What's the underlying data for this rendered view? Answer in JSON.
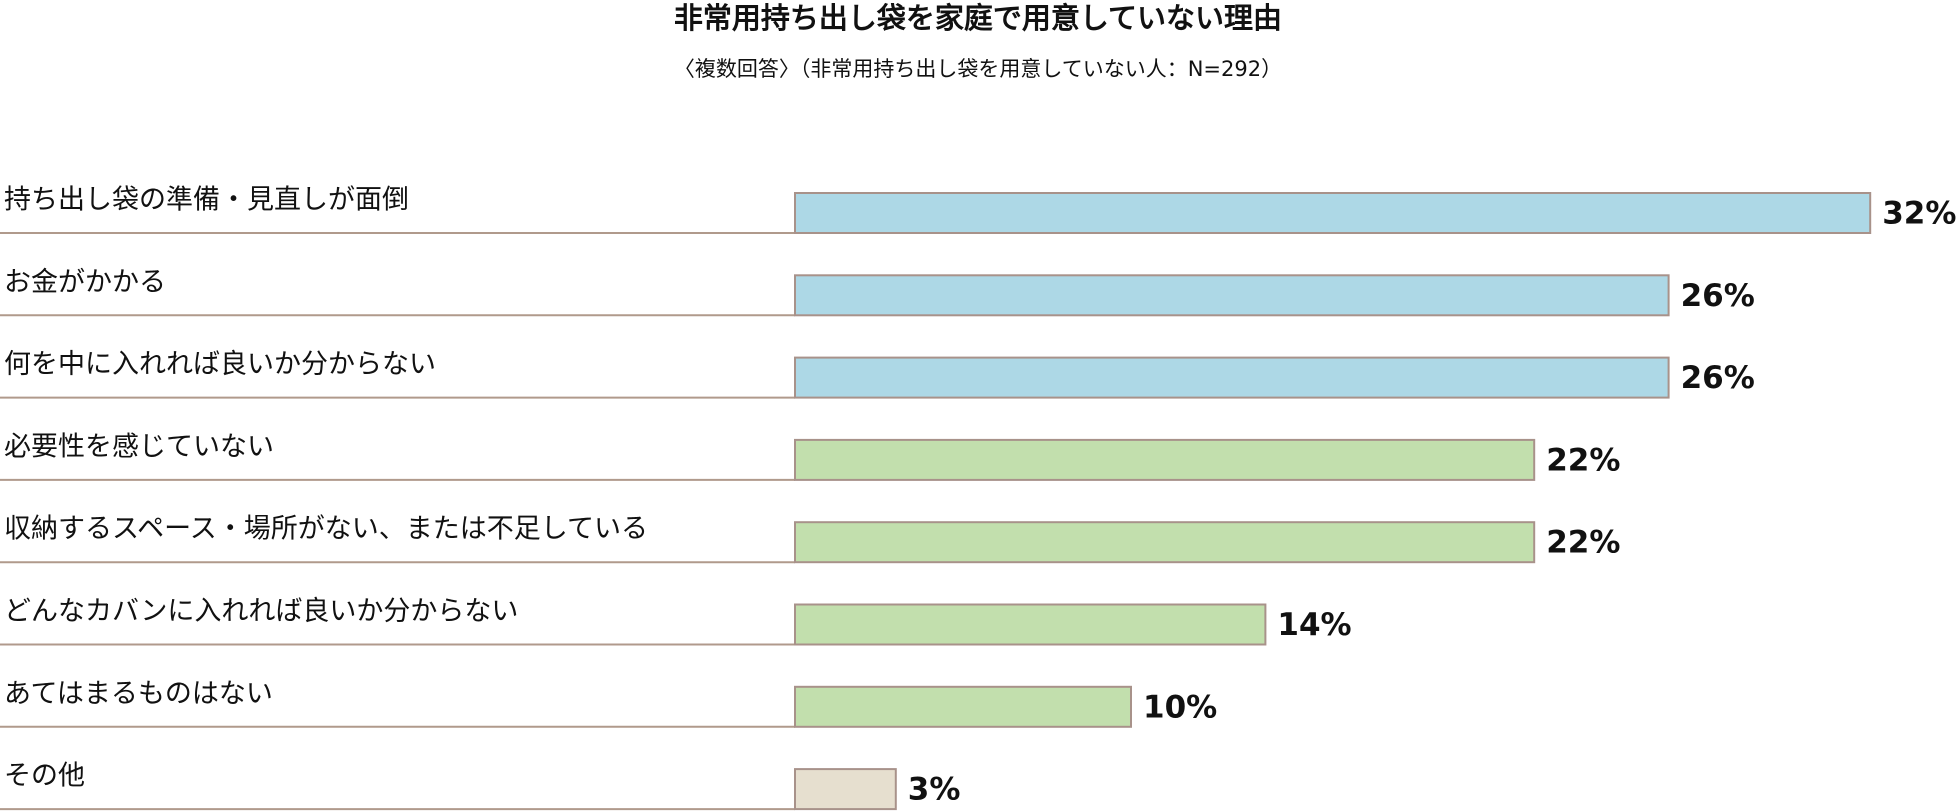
{
  "chart_data": {
    "type": "hbar",
    "title": "非常用持ち出し袋を家庭で用意していない理由",
    "subtitle": "〈複数回答〉（非常用持ち出し袋を用意していない人：N=292）",
    "categories": [
      "持ち出し袋の準備・見直しが面倒",
      "お金がかかる",
      "何を中に入れれば良いか分からない",
      "必要性を感じていない",
      "収納するスペース・場所がない、または不足している",
      "どんなカバンに入れれば良いか分からない",
      "あてはまるものはない",
      "その他"
    ],
    "values": [
      32,
      26,
      26,
      22,
      22,
      14,
      10,
      3
    ],
    "value_labels": [
      "32%",
      "26%",
      "26%",
      "22%",
      "22%",
      "14%",
      "10%",
      "3%"
    ],
    "colors": [
      "#add8e6",
      "#add8e6",
      "#add8e6",
      "#c2dfad",
      "#c2dfad",
      "#c2dfad",
      "#c2dfad",
      "#e6dfcf"
    ]
  }
}
